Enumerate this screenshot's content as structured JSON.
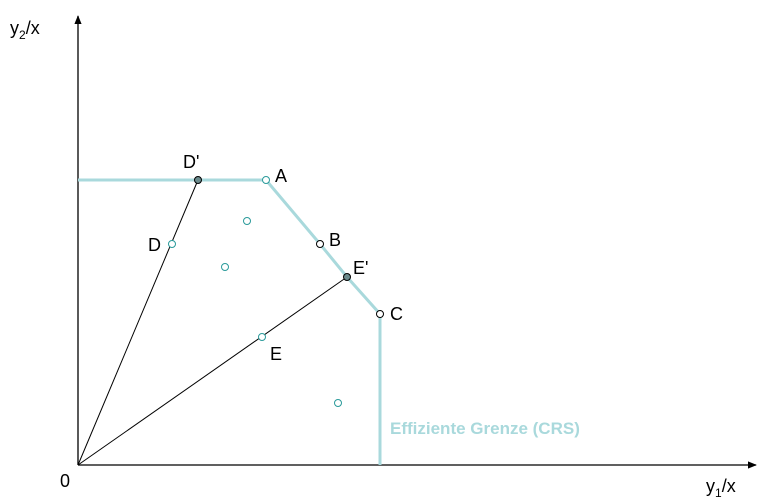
{
  "y_axis_label": {
    "base": "y",
    "sub": "2",
    "rest": "/x"
  },
  "x_axis_label": {
    "base": "y",
    "sub": "1",
    "rest": "/x"
  },
  "origin_label": "0",
  "points": [
    {
      "label": "D'"
    },
    {
      "label": "A"
    },
    {
      "label": "B"
    },
    {
      "label": "E'"
    },
    {
      "label": "C"
    },
    {
      "label": "D"
    },
    {
      "label": "E"
    }
  ],
  "annotation": "Effiziente Grenze (CRS)"
}
